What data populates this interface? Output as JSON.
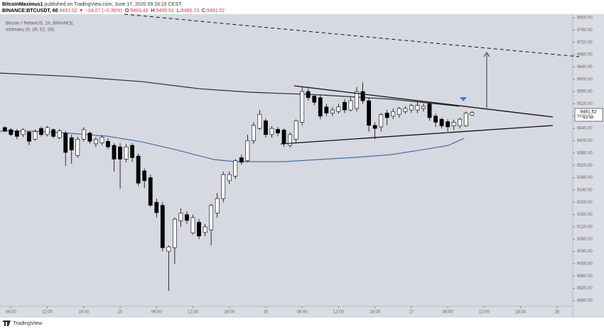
{
  "header": {
    "author": "BitcoinMaximus1",
    "published": "published on TradingView.com, June 17, 2020 09:16:15 CEST",
    "symbol": "BINANCE:BTCUSDT, 60",
    "price": "9491.52",
    "change": "▼ −34.07 (−0.36%)",
    "ohlc": [
      {
        "label": "O:",
        "value": "9483.43"
      },
      {
        "label": "H:",
        "value": "9495.51"
      },
      {
        "label": "L:",
        "value": "9480.73"
      },
      {
        "label": "C:",
        "value": "9491.52"
      }
    ]
  },
  "legend": {
    "instrument": "Bitcoin / TetherUS, 1h, BINANCE",
    "indicator": "Ichimoku (9, 26, 52, 26)"
  },
  "price_label": {
    "price": "9491.52",
    "countdown": "43:48"
  },
  "footer": {
    "brand": "TradingView"
  },
  "chart_data": {
    "type": "candlestick",
    "up_color": "#ffffff",
    "down_color": "#000000",
    "x": [
      5,
      6,
      7,
      8,
      9,
      10,
      11,
      12,
      13,
      14,
      15,
      16,
      17,
      18,
      19,
      20,
      21,
      22,
      23,
      24,
      25,
      26,
      27,
      28,
      29,
      30,
      31,
      32,
      33,
      34,
      35,
      36,
      37,
      38,
      39,
      40,
      41,
      42,
      43,
      44,
      45,
      46,
      47,
      48,
      49,
      50,
      51,
      52,
      53,
      54,
      55,
      56,
      57,
      58,
      59,
      60,
      61,
      62,
      63,
      64,
      65,
      66,
      67,
      68,
      69,
      70,
      71,
      72,
      73,
      74,
      75,
      76,
      77,
      78,
      79,
      80,
      81,
      82
    ],
    "open": [
      9443,
      9436,
      9432,
      9420,
      9428,
      9405,
      9440,
      9420,
      9436,
      9410,
      9425,
      9410,
      9352,
      9405,
      9425,
      9390,
      9393,
      9398,
      9385,
      9380,
      9340,
      9385,
      9350,
      9302,
      9280,
      9200,
      9190,
      9040,
      9052,
      9140,
      9160,
      9100,
      9135,
      9102,
      9110,
      9165,
      9212,
      9270,
      9285,
      9345,
      9335,
      9400,
      9440,
      9465,
      9420,
      9437,
      9435,
      9385,
      9405,
      9460,
      9560,
      9545,
      9540,
      9510,
      9490,
      9495,
      9525,
      9500,
      9505,
      9560,
      9530,
      9450,
      9445,
      9490,
      9480,
      9485,
      9495,
      9500,
      9500,
      9505,
      9520,
      9480,
      9470,
      9462,
      9448,
      9448,
      9448,
      9483.43
    ],
    "high": [
      9447,
      9440,
      9438,
      9440,
      9432,
      9436,
      9446,
      9448,
      9440,
      9438,
      9432,
      9420,
      9412,
      9444,
      9430,
      9412,
      9418,
      9408,
      9392,
      9392,
      9390,
      9392,
      9358,
      9310,
      9290,
      9212,
      9200,
      9060,
      9150,
      9180,
      9170,
      9160,
      9145,
      9130,
      9195,
      9230,
      9300,
      9300,
      9340,
      9355,
      9420,
      9460,
      9500,
      9472,
      9448,
      9445,
      9440,
      9428,
      9470,
      9575,
      9570,
      9550,
      9548,
      9520,
      9510,
      9520,
      9535,
      9540,
      9575,
      9590,
      9540,
      9460,
      9490,
      9500,
      9505,
      9510,
      9512,
      9520,
      9525,
      9520,
      9525,
      9488,
      9475,
      9470,
      9468,
      9475,
      9495,
      9495.51
    ],
    "low": [
      9428,
      9415,
      9405,
      9412,
      9385,
      9400,
      9414,
      9414,
      9408,
      9405,
      9318,
      9325,
      9345,
      9398,
      9390,
      9380,
      9385,
      9372,
      9300,
      9244,
      9330,
      9330,
      9253,
      9246,
      9185,
      9150,
      9040,
      8912,
      9000,
      9120,
      9130,
      9095,
      9080,
      9090,
      9060,
      9150,
      9200,
      9260,
      9275,
      9322,
      9330,
      9390,
      9435,
      9410,
      9410,
      9415,
      9380,
      9378,
      9395,
      9450,
      9530,
      9515,
      9470,
      9480,
      9480,
      9488,
      9490,
      9495,
      9495,
      9520,
      9430,
      9405,
      9430,
      9450,
      9470,
      9475,
      9488,
      9490,
      9490,
      9495,
      9465,
      9445,
      9440,
      9430,
      9435,
      9440,
      9445,
      9480.73
    ],
    "close": [
      9432,
      9420,
      9414,
      9436,
      9398,
      9430,
      9420,
      9443,
      9414,
      9432,
      9362,
      9370,
      9405,
      9436,
      9398,
      9405,
      9412,
      9380,
      9340,
      9340,
      9380,
      9345,
      9262,
      9270,
      9190,
      9166,
      9052,
      9055,
      9145,
      9165,
      9141,
      9150,
      9090,
      9120,
      9190,
      9212,
      9290,
      9290,
      9335,
      9330,
      9400,
      9450,
      9486,
      9420,
      9440,
      9425,
      9390,
      9420,
      9465,
      9560,
      9540,
      9525,
      9480,
      9490,
      9500,
      9510,
      9500,
      9530,
      9560,
      9530,
      9450,
      9440,
      9485,
      9475,
      9495,
      9505,
      9505,
      9515,
      9515,
      9512,
      9475,
      9460,
      9448,
      9445,
      9460,
      9470,
      9490,
      9491.52
    ],
    "overlays": [
      {
        "color": "#2a2e39",
        "x": [
          4.2,
          16,
          27.7,
          37.1,
          45.3,
          57,
          68.7,
          74.6,
          79.9
        ],
        "values": [
          9620,
          9609,
          9592,
          9569,
          9558,
          9549,
          9535,
          9523,
          9512
        ]
      },
      {
        "color": "#4a6fa5",
        "x": [
          4.2,
          10.1,
          16,
          21.8,
          27.7,
          33.5,
          39.4,
          42.9,
          51.1,
          57,
          62.9,
          68.7,
          74.6,
          78.1,
          80.7
        ],
        "values": [
          9431,
          9431,
          9424,
          9415,
          9396,
          9369,
          9339,
          9332,
          9332,
          9339,
          9346,
          9355,
          9373,
          9385,
          9408
        ]
      }
    ],
    "xlim": [
      4.2,
      98.6
    ],
    "xticks": [
      {
        "value": 6,
        "label": "06:00"
      },
      {
        "value": 12,
        "label": "12:00"
      },
      {
        "value": 18,
        "label": "18:00"
      },
      {
        "value": 24,
        "label": "15"
      },
      {
        "value": 30,
        "label": "06:00"
      },
      {
        "value": 36,
        "label": "12:00"
      },
      {
        "value": 42,
        "label": "18:00"
      },
      {
        "value": 48,
        "label": "16"
      },
      {
        "value": 54,
        "label": "06:00"
      },
      {
        "value": 60,
        "label": "12:00"
      },
      {
        "value": 66,
        "label": "18:00"
      },
      {
        "value": 72,
        "label": "17"
      },
      {
        "value": 78,
        "label": "06:00"
      },
      {
        "value": 84,
        "label": "12:00"
      },
      {
        "value": 90,
        "label": "18:00"
      },
      {
        "value": 96,
        "label": "18"
      }
    ],
    "ylim": [
      8861.6,
      9811.5
    ],
    "yticks": [
      {
        "value": 9800,
        "label": "9800.00"
      },
      {
        "value": 9760,
        "label": "9760.00"
      },
      {
        "value": 9720,
        "label": "9720.00"
      },
      {
        "value": 9680,
        "label": "9680.00"
      },
      {
        "value": 9640,
        "label": "9640.00"
      },
      {
        "value": 9600,
        "label": "9600.00"
      },
      {
        "value": 9560,
        "label": "9560.00"
      },
      {
        "value": 9520,
        "label": "9520.00"
      },
      {
        "value": 9480,
        "label": "9480.00"
      },
      {
        "value": 9440,
        "label": "9440.00"
      },
      {
        "value": 9400,
        "label": "9400.00"
      },
      {
        "value": 9360,
        "label": "9360.00"
      },
      {
        "value": 9320,
        "label": "9320.00"
      },
      {
        "value": 9280,
        "label": "9280.00"
      },
      {
        "value": 9240,
        "label": "9240.00"
      },
      {
        "value": 9200,
        "label": "9200.00"
      },
      {
        "value": 9160,
        "label": "9160.00"
      },
      {
        "value": 9120,
        "label": "9120.00"
      },
      {
        "value": 9080,
        "label": "9080.00"
      },
      {
        "value": 9040,
        "label": "9040.00"
      },
      {
        "value": 9000,
        "label": "9000.00"
      },
      {
        "value": 8960,
        "label": "8960.00"
      },
      {
        "value": 8920,
        "label": "8920.00"
      },
      {
        "value": 8880,
        "label": "8880.00"
      }
    ]
  }
}
